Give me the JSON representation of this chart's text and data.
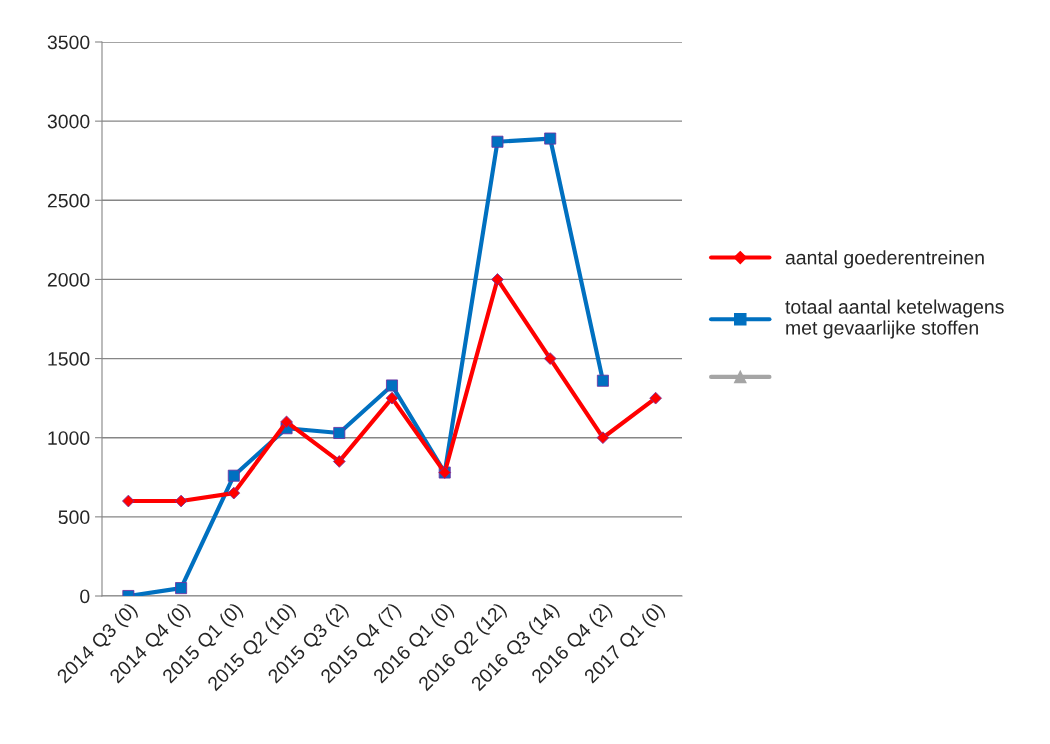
{
  "chart_data": {
    "type": "line",
    "categories": [
      "2014 Q3 (0)",
      "2014 Q4 (0)",
      "2015 Q1 (0)",
      "2015 Q2 (10)",
      "2015 Q3 (2)",
      "2015 Q4 (7)",
      "2016 Q1 (0)",
      "2016 Q2 (12)",
      "2016 Q3 (14)",
      "2016 Q4 (2)",
      "2017 Q1 (0)"
    ],
    "series": [
      {
        "name": "aantal goederentreinen",
        "color": "#ff0000",
        "marker": "diamond",
        "values": [
          600,
          600,
          650,
          1100,
          850,
          1250,
          780,
          2000,
          1500,
          1000,
          1250
        ]
      },
      {
        "name": "totaal aantal ketelwagens\nmet gevaarlijke stoffen",
        "color": "#0070c0",
        "marker": "square",
        "values": [
          0,
          50,
          760,
          1060,
          1030,
          1330,
          780,
          2870,
          2890,
          1360,
          null
        ]
      },
      {
        "color": "#a5a5a5",
        "marker": "triangle",
        "values": [
          null,
          null,
          null,
          null,
          null,
          null,
          null,
          null,
          null,
          null,
          null
        ]
      }
    ],
    "ylim": [
      0,
      3500
    ],
    "yticks": [
      0,
      500,
      1000,
      1500,
      2000,
      2500,
      3000,
      3500
    ],
    "grid": "y",
    "legend": "right"
  }
}
